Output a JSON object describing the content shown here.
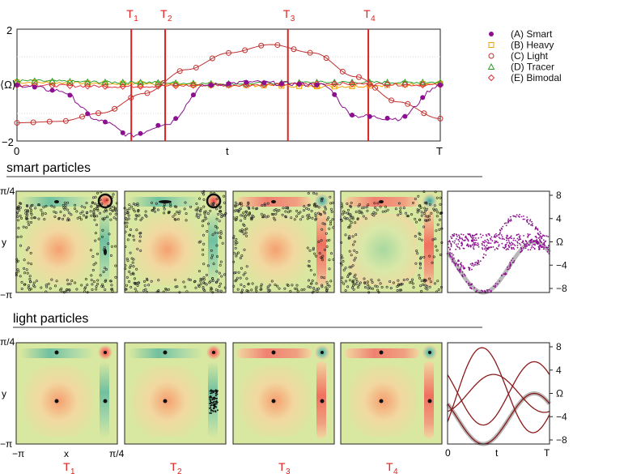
{
  "colors": {
    "smart": "#8b0f8f",
    "heavy": "#f0a000",
    "light": "#c03030",
    "tracer": "#2aa02a",
    "bimodal": "#e0303a",
    "marker_lines": "#e02020",
    "gray_curve": "#b8b8b8",
    "dark_red": "#8b1a1a"
  },
  "sections": {
    "smart_title": "smart particles",
    "light_title": "light particles"
  },
  "main_axes": {
    "y_top": "2",
    "y_mid": "⟨Ω⟩",
    "y_bottom": "−2",
    "x_left": "0",
    "x_mid": "t",
    "x_right": "T",
    "markers": [
      {
        "label": "T",
        "sub": "1"
      },
      {
        "label": "T",
        "sub": "2"
      },
      {
        "label": "T",
        "sub": "3"
      },
      {
        "label": "T",
        "sub": "4"
      }
    ]
  },
  "field_axes": {
    "y_top": "π/4",
    "y_mid": "y",
    "y_bottom": "−π",
    "x_left": "−π",
    "x_mid": "x",
    "x_right": "π/4"
  },
  "side_axes": {
    "ticks": [
      "8",
      "4",
      "Ω",
      "−4",
      "−8"
    ],
    "x_left": "0",
    "x_mid": "t",
    "x_right": "T"
  },
  "bottom_markers": [
    {
      "label": "T",
      "sub": "1"
    },
    {
      "label": "T",
      "sub": "2"
    },
    {
      "label": "T",
      "sub": "3"
    },
    {
      "label": "T",
      "sub": "4"
    }
  ],
  "chart_data": {
    "type": "line",
    "x_range": [
      0,
      1
    ],
    "ylim": [
      -2,
      2
    ],
    "marker_times": [
      0.27,
      0.35,
      0.64,
      0.83
    ],
    "series": [
      {
        "name": "(A) Smart",
        "marker": "filled-circle",
        "x": [
          0,
          0.1,
          0.2,
          0.27,
          0.35,
          0.45,
          0.55,
          0.64,
          0.72,
          0.8,
          0.9,
          1.0
        ],
        "y": [
          0.0,
          -0.2,
          -1.3,
          -1.8,
          -1.4,
          0.0,
          0.1,
          0.05,
          0.0,
          -1.1,
          -1.2,
          0.0
        ]
      },
      {
        "name": "(B) Heavy",
        "marker": "open-square",
        "x": [
          0,
          0.25,
          0.5,
          0.75,
          1.0
        ],
        "y": [
          0.1,
          0.05,
          0.0,
          -0.05,
          0.05
        ]
      },
      {
        "name": "(C) Light",
        "marker": "open-circle",
        "x": [
          0,
          0.1,
          0.2,
          0.3,
          0.4,
          0.5,
          0.6,
          0.7,
          0.8,
          0.9,
          1.0
        ],
        "y": [
          -1.35,
          -1.3,
          -1.0,
          -0.3,
          0.55,
          1.15,
          1.45,
          1.15,
          0.3,
          -0.6,
          -1.2
        ]
      },
      {
        "name": "(D) Tracer",
        "marker": "open-triangle",
        "x": [
          0,
          0.25,
          0.5,
          0.75,
          1.0
        ],
        "y": [
          0.15,
          0.1,
          0.05,
          0.1,
          0.1
        ]
      },
      {
        "name": "(E) Bimodal",
        "marker": "open-diamond",
        "x": [
          0,
          0.25,
          0.5,
          0.75,
          1.0
        ],
        "y": [
          0.0,
          -0.05,
          0.0,
          0.05,
          0.0
        ]
      }
    ]
  }
}
